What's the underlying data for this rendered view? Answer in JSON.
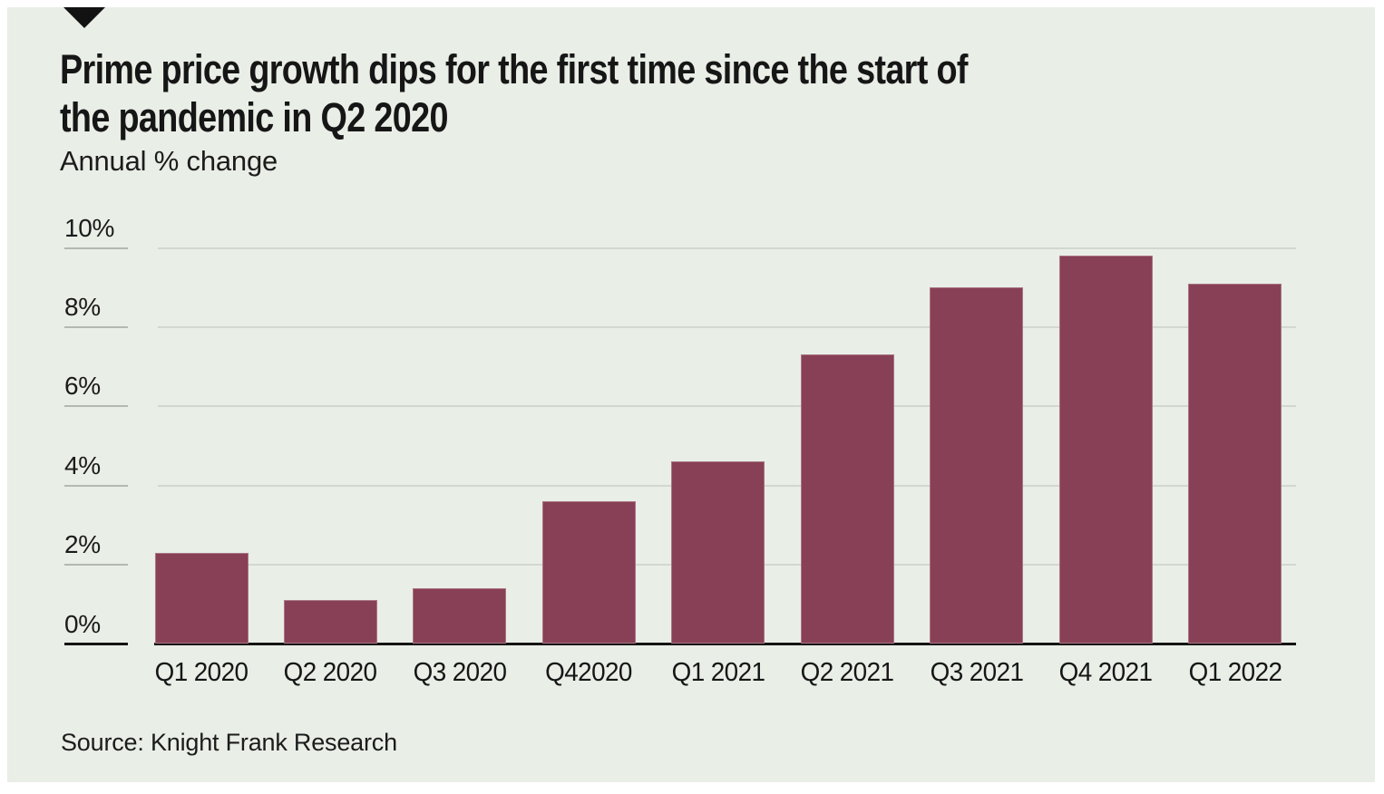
{
  "header": {
    "title_lines": [
      "Prime price growth dips for the first time since the start of",
      "the pandemic in Q2 2020"
    ],
    "subtitle": "Annual % change"
  },
  "footer": {
    "source": "Source: Knight Frank Research"
  },
  "colors": {
    "panel_background": "#e9eee7",
    "bar": "#884056",
    "gridline": "#d2d7d0",
    "tick": "#b3b9b1",
    "axis": "#141414",
    "text": "#161616"
  },
  "icons": {
    "triangle_marker": "triangle-down-icon"
  },
  "chart_data": {
    "type": "bar",
    "title": "Prime price growth dips for the first time since the start of the pandemic in Q2 2020",
    "subtitle": "Annual % change",
    "categories": [
      "Q1 2020",
      "Q2 2020",
      "Q3 2020",
      "Q42020",
      "Q1 2021",
      "Q2 2021",
      "Q3 2021",
      "Q4 2021",
      "Q1 2022"
    ],
    "values": [
      2.3,
      1.1,
      1.4,
      3.6,
      4.6,
      7.3,
      9.0,
      9.8,
      9.1
    ],
    "xlabel": "",
    "ylabel": "Annual % change",
    "ylim": [
      0,
      10
    ],
    "ytick_values": [
      10,
      8,
      6,
      4,
      2,
      0
    ],
    "ytick_labels": [
      "10%",
      "8%",
      "6%",
      "4%",
      "2%",
      "0%"
    ],
    "grid": "horizontal",
    "legend": "none",
    "source": "Source: Knight Frank Research"
  }
}
